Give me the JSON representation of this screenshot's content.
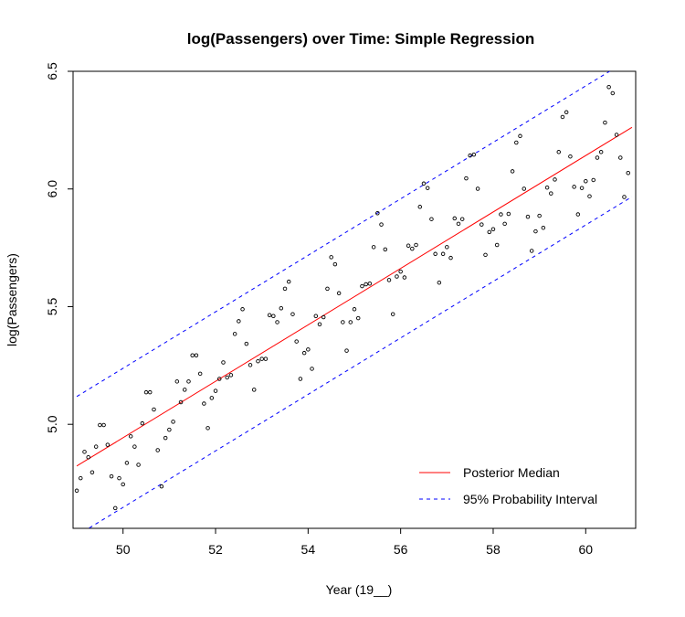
{
  "chart_data": {
    "type": "scatter",
    "title": "log(Passengers) over Time: Simple Regression",
    "xlabel": "Year (19__)",
    "ylabel": "log(Passengers)",
    "xlim": [
      48.92,
      61.08
    ],
    "ylim": [
      4.558,
      6.5
    ],
    "xticks": [
      50,
      52,
      54,
      56,
      58,
      60
    ],
    "yticks": [
      5.0,
      5.5,
      6.0,
      6.5
    ],
    "yticks_labels": [
      "5.0",
      "5.5",
      "6.0",
      "6.5"
    ],
    "legend_position": "bottom-right",
    "colors": {
      "median": "#ff0000",
      "interval": "#0000ff",
      "points": "#000000"
    },
    "series": [
      {
        "name": "Posterior Median",
        "style": "solid",
        "color": "#ff0000",
        "x": [
          49.0,
          61.0
        ],
        "y": [
          4.823,
          6.262
        ]
      },
      {
        "name": "95% Probability Interval",
        "style": "dashed",
        "color": "#0000ff",
        "x": [
          49.0,
          61.0
        ],
        "y": [
          5.118,
          6.558
        ]
      },
      {
        "name": "",
        "style": "dashed",
        "color": "#0000ff",
        "x": [
          49.0,
          61.0
        ],
        "y": [
          4.527,
          5.967
        ]
      },
      {
        "name": "",
        "style": "points",
        "color": "#000000",
        "x": [
          49.0,
          49.083,
          49.167,
          49.25,
          49.333,
          49.417,
          49.5,
          49.583,
          49.667,
          49.75,
          49.833,
          49.917,
          50.0,
          50.083,
          50.167,
          50.25,
          50.333,
          50.417,
          50.5,
          50.583,
          50.667,
          50.75,
          50.833,
          50.917,
          51.0,
          51.083,
          51.167,
          51.25,
          51.333,
          51.417,
          51.5,
          51.583,
          51.667,
          51.75,
          51.833,
          51.917,
          52.0,
          52.083,
          52.167,
          52.25,
          52.333,
          52.417,
          52.5,
          52.583,
          52.667,
          52.75,
          52.833,
          52.917,
          53.0,
          53.083,
          53.167,
          53.25,
          53.333,
          53.417,
          53.5,
          53.583,
          53.667,
          53.75,
          53.833,
          53.917,
          54.0,
          54.083,
          54.167,
          54.25,
          54.333,
          54.417,
          54.5,
          54.583,
          54.667,
          54.75,
          54.833,
          54.917,
          55.0,
          55.083,
          55.167,
          55.25,
          55.333,
          55.417,
          55.5,
          55.583,
          55.667,
          55.75,
          55.833,
          55.917,
          56.0,
          56.083,
          56.167,
          56.25,
          56.333,
          56.417,
          56.5,
          56.583,
          56.667,
          56.75,
          56.833,
          56.917,
          57.0,
          57.083,
          57.167,
          57.25,
          57.333,
          57.417,
          57.5,
          57.583,
          57.667,
          57.75,
          57.833,
          57.917,
          58.0,
          58.083,
          58.167,
          58.25,
          58.333,
          58.417,
          58.5,
          58.583,
          58.667,
          58.75,
          58.833,
          58.917,
          59.0,
          59.083,
          59.167,
          59.25,
          59.333,
          59.417,
          59.5,
          59.583,
          59.667,
          59.75,
          59.833,
          59.917,
          60.0,
          60.083,
          60.167,
          60.25,
          60.333,
          60.417,
          60.5,
          60.583,
          60.667,
          60.75,
          60.833,
          60.917
        ],
        "y": [
          4.718,
          4.771,
          4.883,
          4.86,
          4.796,
          4.905,
          4.997,
          4.997,
          4.913,
          4.779,
          4.644,
          4.771,
          4.745,
          4.836,
          4.949,
          4.905,
          4.828,
          5.004,
          5.136,
          5.136,
          5.063,
          4.89,
          4.736,
          4.942,
          4.977,
          5.011,
          5.182,
          5.094,
          5.147,
          5.182,
          5.293,
          5.293,
          5.215,
          5.088,
          4.984,
          5.112,
          5.142,
          5.193,
          5.263,
          5.199,
          5.209,
          5.384,
          5.438,
          5.489,
          5.342,
          5.252,
          5.147,
          5.268,
          5.278,
          5.278,
          5.464,
          5.46,
          5.434,
          5.493,
          5.576,
          5.606,
          5.468,
          5.352,
          5.193,
          5.303,
          5.318,
          5.236,
          5.46,
          5.425,
          5.455,
          5.576,
          5.71,
          5.68,
          5.557,
          5.434,
          5.313,
          5.434,
          5.489,
          5.451,
          5.587,
          5.595,
          5.598,
          5.753,
          5.897,
          5.849,
          5.743,
          5.613,
          5.468,
          5.628,
          5.649,
          5.624,
          5.759,
          5.746,
          5.762,
          5.924,
          6.023,
          6.004,
          5.872,
          5.724,
          5.602,
          5.724,
          5.753,
          5.707,
          5.875,
          5.852,
          5.872,
          6.045,
          6.142,
          6.146,
          6.001,
          5.849,
          5.72,
          5.817,
          5.829,
          5.762,
          5.892,
          5.852,
          5.894,
          6.075,
          6.197,
          6.225,
          6.001,
          5.882,
          5.737,
          5.82,
          5.886,
          5.835,
          6.006,
          5.981,
          6.04,
          6.157,
          6.306,
          6.326,
          6.138,
          6.009,
          5.892,
          6.004,
          6.033,
          5.969,
          6.038,
          6.133,
          6.157,
          6.282,
          6.433,
          6.407,
          6.23,
          6.133,
          5.966,
          6.068
        ]
      }
    ]
  }
}
